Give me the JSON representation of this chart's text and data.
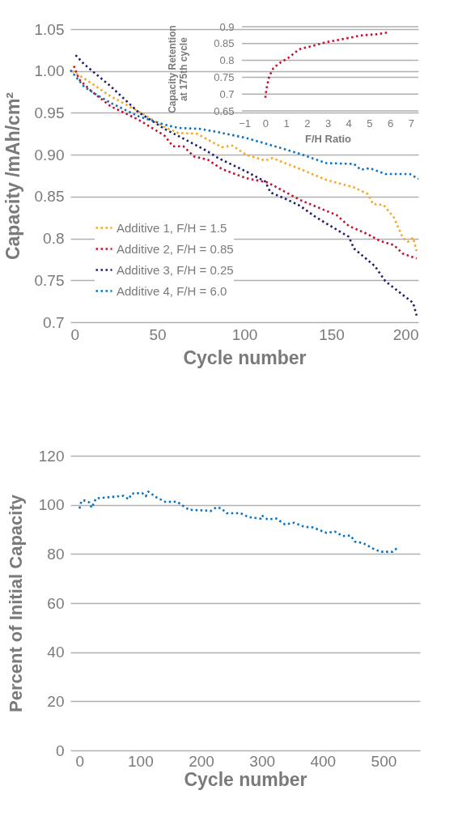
{
  "chart_data": [
    {
      "type": "line",
      "xlabel": "Cycle number",
      "ylabel": "Capacity /mAh/cm²",
      "xlim": [
        0,
        200
      ],
      "ylim": [
        0.7,
        1.05
      ],
      "xticks": [
        0,
        50,
        100,
        150,
        200
      ],
      "yticks": [
        0.7,
        0.75,
        0.8,
        0.85,
        {
          "value": 0.9,
          "label": "0.90"
        },
        0.95,
        {
          "value": 1.0,
          "label": "1.00"
        },
        1.05
      ],
      "grid": "y",
      "legend": "bottom left",
      "line_style": "dotted",
      "series": [
        {
          "name": "Additive 1, F/H = 1.5",
          "color": "#f5a623",
          "x": [
            1,
            8,
            23,
            39,
            54,
            62,
            73,
            79,
            87,
            93,
            101,
            112,
            116,
            132,
            147,
            163,
            171,
            174,
            180,
            186,
            191,
            194,
            197,
            199
          ],
          "values": [
            1.0,
            0.991,
            0.97,
            0.952,
            0.933,
            0.926,
            0.925,
            0.918,
            0.909,
            0.911,
            0.9,
            0.893,
            0.896,
            0.883,
            0.87,
            0.861,
            0.853,
            0.841,
            0.84,
            0.825,
            0.801,
            0.796,
            0.801,
            0.785
          ]
        },
        {
          "name": "Additive 2, F/H = 0.85",
          "color": "#c8102e",
          "x": [
            2,
            5,
            12,
            23,
            39,
            54,
            59,
            65,
            71,
            79,
            87,
            101,
            113,
            116,
            132,
            147,
            153,
            160,
            171,
            178,
            186,
            191,
            199
          ],
          "values": [
            1.006,
            0.99,
            0.976,
            0.958,
            0.942,
            0.923,
            0.91,
            0.91,
            0.898,
            0.894,
            0.883,
            0.872,
            0.867,
            0.864,
            0.846,
            0.833,
            0.828,
            0.815,
            0.805,
            0.797,
            0.792,
            0.782,
            0.776
          ]
        },
        {
          "name": "Additive 3, F/H = 0.25",
          "color": "#1f1f6e",
          "x": [
            3,
            8,
            23,
            39,
            54,
            68,
            78,
            85,
            93,
            101,
            112,
            115,
            124,
            132,
            140,
            147,
            160,
            163,
            175,
            181,
            189,
            197,
            199
          ],
          "values": [
            1.019,
            1.008,
            0.982,
            0.951,
            0.931,
            0.916,
            0.905,
            0.896,
            0.888,
            0.88,
            0.868,
            0.855,
            0.847,
            0.839,
            0.827,
            0.818,
            0.802,
            0.788,
            0.767,
            0.749,
            0.736,
            0.723,
            0.708
          ]
        },
        {
          "name": "Additive 4, F/H = 6.0",
          "color": "#0a72c2",
          "x": [
            0,
            8,
            14,
            23,
            39,
            54,
            62,
            74,
            85,
            101,
            116,
            132,
            147,
            163,
            167,
            172,
            181,
            195,
            200
          ],
          "values": [
            1.001,
            0.981,
            0.973,
            0.962,
            0.946,
            0.936,
            0.932,
            0.931,
            0.927,
            0.92,
            0.911,
            0.901,
            0.89,
            0.889,
            0.882,
            0.884,
            0.877,
            0.877,
            0.871
          ]
        }
      ]
    },
    {
      "type": "line",
      "xlabel": "F/H Ratio",
      "ylabel": "Capacity Retention\nat 175th cycle",
      "xlim": [
        -1.2,
        7.2
      ],
      "ylim": [
        0.65,
        0.9
      ],
      "xticks": [
        -1,
        0,
        1,
        2,
        3,
        4,
        5,
        6,
        7
      ],
      "yticks": [
        0.65,
        0.7,
        0.75,
        0.8,
        0.85,
        0.9
      ],
      "grid": "y",
      "line_style": "dotted",
      "series": [
        {
          "color": "#c8102e",
          "x": [
            0,
            0.06,
            0.19,
            0.39,
            0.71,
            1.1,
            1.62,
            2.27,
            2.92,
            3.7,
            4.6,
            5.38,
            5.9
          ],
          "values": [
            0.689,
            0.717,
            0.753,
            0.777,
            0.793,
            0.807,
            0.833,
            0.843,
            0.854,
            0.863,
            0.874,
            0.878,
            0.883
          ]
        }
      ]
    },
    {
      "type": "line",
      "xlabel": "Cycle number",
      "ylabel": "Percent of Initial Capacity",
      "xlim": [
        -15,
        560
      ],
      "ylim": [
        0,
        120
      ],
      "xticks": [
        0,
        100,
        200,
        300,
        400,
        500
      ],
      "yticks": [
        0,
        20,
        40,
        60,
        80,
        100,
        120
      ],
      "grid": "y",
      "line_style": "dotted",
      "series": [
        {
          "color": "#0a72c2",
          "x": [
            0,
            3,
            8,
            16,
            20,
            27,
            43,
            61,
            72,
            81,
            86,
            103,
            109,
            113,
            127,
            141,
            160,
            180,
            207,
            215,
            225,
            233,
            242,
            265,
            278,
            298,
            300,
            309,
            324,
            338,
            353,
            369,
            384,
            406,
            420,
            433,
            446,
            453,
            466,
            482,
            495,
            515,
            522
          ],
          "values": [
            98.5,
            101.5,
            101.8,
            101,
            98.8,
            102.6,
            103,
            103.4,
            103.7,
            102.3,
            104.6,
            104.8,
            103.5,
            105.4,
            103,
            101.2,
            101.3,
            98,
            97.7,
            97.4,
            99,
            98.6,
            96.6,
            96.6,
            95,
            94.4,
            95.7,
            94.1,
            94.4,
            92,
            92.7,
            91.1,
            90.8,
            88.6,
            89.1,
            87.3,
            87.5,
            85,
            84.5,
            82.3,
            80.9,
            80.9,
            82.3
          ]
        }
      ]
    }
  ]
}
